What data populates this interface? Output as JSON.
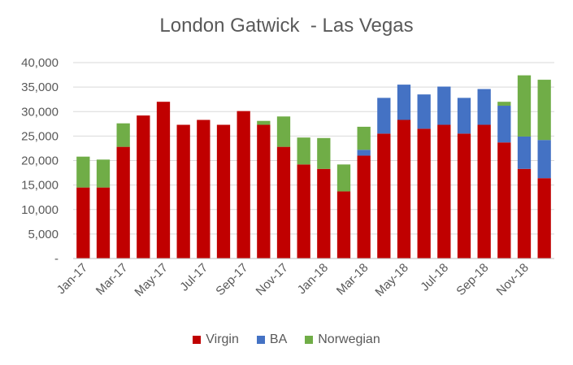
{
  "chart_data": {
    "type": "bar",
    "stacked": true,
    "title": "London Gatwick  - Las Vegas",
    "xlabel": "",
    "ylabel": "",
    "ylim": [
      0,
      40000
    ],
    "y_ticks": [
      "-",
      "5,000",
      "10,000",
      "15,000",
      "20,000",
      "25,000",
      "30,000",
      "35,000",
      "40,000"
    ],
    "categories": [
      "Jan-17",
      "Feb-17",
      "Mar-17",
      "Apr-17",
      "May-17",
      "Jun-17",
      "Jul-17",
      "Aug-17",
      "Sep-17",
      "Oct-17",
      "Nov-17",
      "Dec-17",
      "Jan-18",
      "Feb-18",
      "Mar-18",
      "Apr-18",
      "May-18",
      "Jun-18",
      "Jul-18",
      "Aug-18",
      "Sep-18",
      "Oct-18",
      "Nov-18",
      "Dec-18"
    ],
    "x_tick_labels": [
      "Jan-17",
      "",
      "Mar-17",
      "",
      "May-17",
      "",
      "Jul-17",
      "",
      "Sep-17",
      "",
      "Nov-17",
      "",
      "Jan-18",
      "",
      "Mar-18",
      "",
      "May-18",
      "",
      "Jul-18",
      "",
      "Sep-18",
      "",
      "Nov-18",
      ""
    ],
    "series": [
      {
        "name": "Virgin",
        "color": "#C00000",
        "values": [
          14500,
          14500,
          22800,
          29200,
          32000,
          27300,
          28300,
          27300,
          30100,
          27300,
          22800,
          19200,
          18300,
          13700,
          21000,
          25500,
          28300,
          26500,
          27300,
          25500,
          27300,
          23700,
          18300,
          16400
        ]
      },
      {
        "name": "BA",
        "color": "#4472C4",
        "values": [
          0,
          0,
          0,
          0,
          0,
          0,
          0,
          0,
          0,
          0,
          0,
          0,
          0,
          0,
          1200,
          7300,
          7200,
          7000,
          7800,
          7300,
          7300,
          7500,
          6600,
          7800
        ]
      },
      {
        "name": "Norwegian",
        "color": "#70AD47",
        "values": [
          6300,
          5700,
          4800,
          0,
          0,
          0,
          0,
          0,
          0,
          800,
          6200,
          5500,
          6300,
          5500,
          4700,
          0,
          0,
          0,
          0,
          0,
          0,
          800,
          12500,
          12300
        ]
      }
    ],
    "grid": true,
    "legend_position": "bottom"
  }
}
